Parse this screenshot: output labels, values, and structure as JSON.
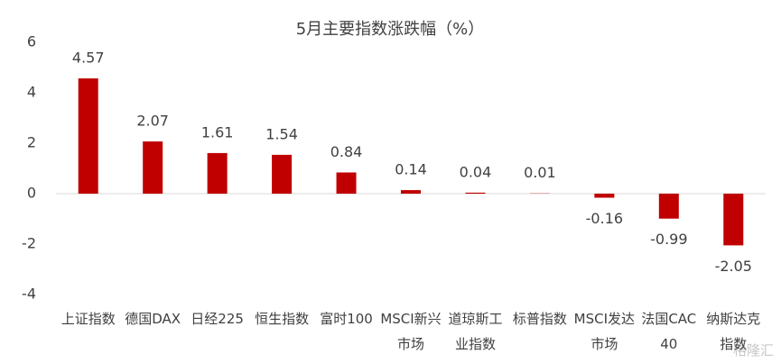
{
  "chart_data": {
    "type": "bar",
    "title": "5月主要指数涨跌幅（%）",
    "categories": [
      "上证指数",
      "德国DAX",
      "日经225",
      "恒生指数",
      "富时100",
      "MSCI新兴市场",
      "道琼斯工业指数",
      "标普指数",
      "MSCI发达市场",
      "法国CAC40",
      "纳斯达克指数"
    ],
    "values": [
      4.57,
      2.07,
      1.61,
      1.54,
      0.84,
      0.14,
      0.04,
      0.01,
      -0.16,
      -0.99,
      -2.05
    ],
    "color": "#c00000",
    "ylim": [
      -4,
      6
    ],
    "yticks": [
      -4,
      -2,
      0,
      2,
      4,
      6
    ],
    "grid": false,
    "watermark": "格隆汇"
  }
}
